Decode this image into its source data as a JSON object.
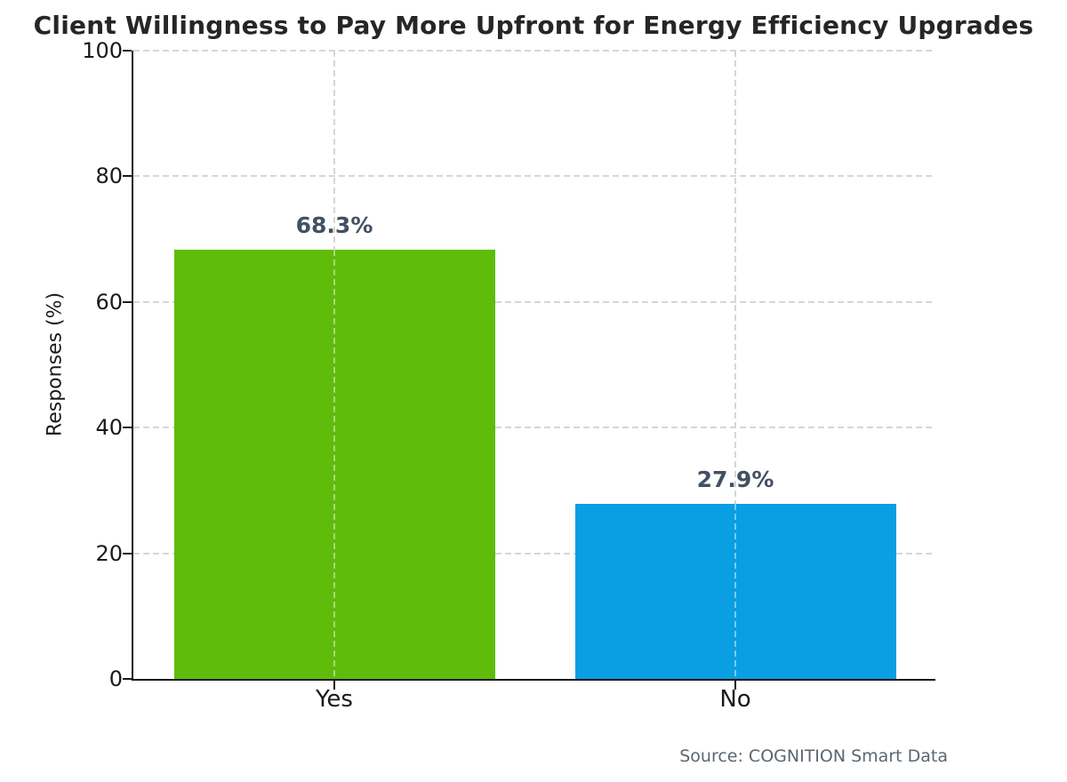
{
  "title": "Client Willingness to Pay More Upfront for Energy Efficiency Upgrades",
  "source": "Source: COGNITION Smart Data",
  "chart_data": {
    "type": "bar",
    "title": "Client Willingness to Pay More Upfront for Energy Efficiency Upgrades",
    "categories": [
      "Yes",
      "No"
    ],
    "values": [
      68.3,
      27.9
    ],
    "value_labels": [
      "68.3%",
      "27.9%"
    ],
    "xlabel": "",
    "ylabel": "Responses (%)",
    "ylim": [
      0,
      100
    ],
    "yticks": [
      0,
      20,
      40,
      60,
      80,
      100
    ],
    "grid": true,
    "legend": "none",
    "bar_colors": [
      "#5fbc0a",
      "#0a9ee3"
    ],
    "value_label_color": "#425062",
    "grid_color": "#d6d6d6",
    "axis_color": "#1a1a1a",
    "title_color": "#262626",
    "source_color": "#5b6671"
  }
}
